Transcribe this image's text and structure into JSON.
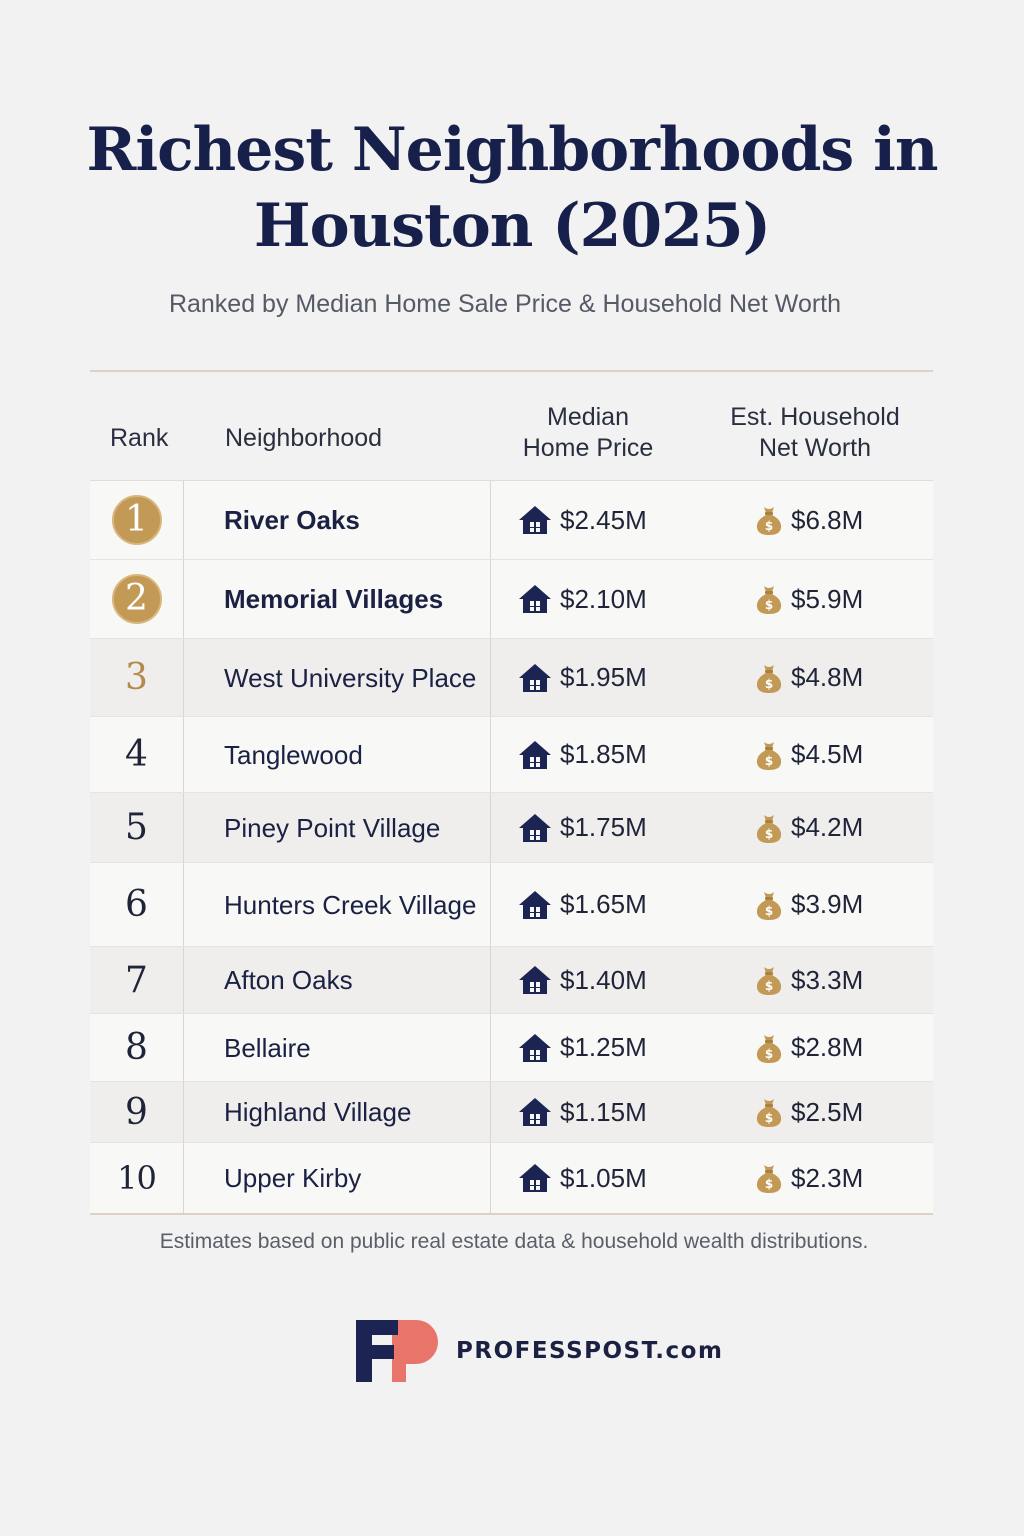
{
  "header": {
    "title_line1": "Richest Neighborhoods in",
    "title_line2": "Houston (2025)",
    "subtitle": "Ranked by Median Home Sale Price & Household Net Worth"
  },
  "table": {
    "columns": {
      "rank": "Rank",
      "neighborhood": "Neighborhood",
      "price_line1": "Median",
      "price_line2": "Home Price",
      "worth_line1": "Est. Household",
      "worth_line2": "Net Worth"
    },
    "rows": [
      {
        "rank": "1",
        "name": "River Oaks",
        "price": "$2.45M",
        "worth": "$6.8M"
      },
      {
        "rank": "2",
        "name": "Memorial Villages",
        "price": "$2.10M",
        "worth": "$5.9M"
      },
      {
        "rank": "3",
        "name": "West University Place",
        "price": "$1.95M",
        "worth": "$4.8M"
      },
      {
        "rank": "4",
        "name": "Tanglewood",
        "price": "$1.85M",
        "worth": "$4.5M"
      },
      {
        "rank": "5",
        "name": "Piney Point Village",
        "price": "$1.75M",
        "worth": "$4.2M"
      },
      {
        "rank": "6",
        "name": "Hunters Creek Village",
        "price": "$1.65M",
        "worth": "$3.9M"
      },
      {
        "rank": "7",
        "name": "Afton Oaks",
        "price": "$1.40M",
        "worth": "$3.3M"
      },
      {
        "rank": "8",
        "name": "Bellaire",
        "price": "$1.25M",
        "worth": "$2.8M"
      },
      {
        "rank": "9",
        "name": "Highland Village",
        "price": "$1.15M",
        "worth": "$2.5M"
      },
      {
        "rank": "10",
        "name": "Upper Kirby",
        "price": "$1.05M",
        "worth": "$2.3M"
      }
    ],
    "icons": {
      "price": "house-icon",
      "worth": "money-bag-icon"
    }
  },
  "footnote": "Estimates based on public real estate data & household wealth distributions.",
  "brand": {
    "logo_letters": "FP",
    "site": "PROFESSPOST.com"
  },
  "colors": {
    "navy": "#17204a",
    "gold": "#c39a55",
    "coral": "#e8746a",
    "background": "#f3f2f2"
  }
}
